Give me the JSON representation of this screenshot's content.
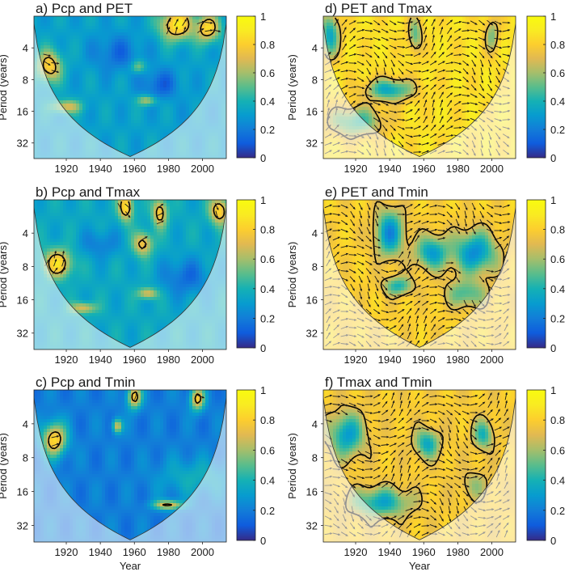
{
  "figure": {
    "cbar_ticks": [
      "0",
      "0.2",
      "0.4",
      "0.6",
      "0.8",
      "1"
    ]
  },
  "chart_data": [
    {
      "type": "heatmap",
      "title": "a) Pcp and PET",
      "xlabel": "",
      "ylabel": "Period (years)",
      "x_ticks": [
        "1920",
        "1940",
        "1960",
        "1980",
        "2000"
      ],
      "y_ticks": [
        "4",
        "8",
        "16",
        "32"
      ],
      "xlim": [
        1901,
        2014
      ],
      "ylim": [
        2,
        45
      ],
      "y_scale": "log2",
      "color_range": [
        0,
        1
      ],
      "colormap": "parula",
      "base_coherence": 0.32,
      "cone_of_influence": true,
      "blobs": [
        {
          "x": 1910,
          "p": 6.0,
          "value": 0.82,
          "sx": 5,
          "sp": 0.35
        },
        {
          "x": 1985,
          "p": 2.4,
          "value": 0.9,
          "sx": 7,
          "sp": 0.35
        },
        {
          "x": 2003,
          "p": 2.6,
          "value": 0.85,
          "sx": 5,
          "sp": 0.3
        },
        {
          "x": 1962,
          "p": 6.0,
          "value": 0.72,
          "sx": 3,
          "sp": 0.15
        },
        {
          "x": 1968,
          "p": 12.5,
          "value": 0.78,
          "sx": 4,
          "sp": 0.12
        },
        {
          "x": 1920,
          "p": 14.5,
          "value": 0.7,
          "sx": 6,
          "sp": 0.15
        },
        {
          "x": 1950,
          "p": 4.5,
          "value": 0.15,
          "sx": 10,
          "sp": 0.4
        },
        {
          "x": 1975,
          "p": 9.0,
          "value": 0.12,
          "sx": 8,
          "sp": 0.35
        },
        {
          "x": 1995,
          "p": 18.0,
          "value": 0.3,
          "sx": 12,
          "sp": 0.4
        }
      ]
    },
    {
      "type": "heatmap",
      "title": "b) Pcp and Tmax",
      "xlabel": "",
      "ylabel": "Period (years)",
      "x_ticks": [
        "1920",
        "1940",
        "1960",
        "1980",
        "2000"
      ],
      "y_ticks": [
        "4",
        "8",
        "16",
        "32"
      ],
      "xlim": [
        1901,
        2014
      ],
      "ylim": [
        2,
        45
      ],
      "y_scale": "log2",
      "color_range": [
        0,
        1
      ],
      "colormap": "parula",
      "base_coherence": 0.35,
      "cone_of_influence": true,
      "blobs": [
        {
          "x": 1915,
          "p": 7.5,
          "value": 0.85,
          "sx": 6,
          "sp": 0.3
        },
        {
          "x": 1955,
          "p": 2.3,
          "value": 0.88,
          "sx": 3,
          "sp": 0.3
        },
        {
          "x": 1965,
          "p": 5.0,
          "value": 0.78,
          "sx": 4,
          "sp": 0.25
        },
        {
          "x": 1975,
          "p": 2.6,
          "value": 0.82,
          "sx": 3,
          "sp": 0.3
        },
        {
          "x": 2010,
          "p": 2.5,
          "value": 0.84,
          "sx": 4,
          "sp": 0.3
        },
        {
          "x": 1968,
          "p": 14.0,
          "value": 0.75,
          "sx": 4,
          "sp": 0.12
        },
        {
          "x": 1930,
          "p": 19.0,
          "value": 0.72,
          "sx": 5,
          "sp": 0.12
        },
        {
          "x": 1990,
          "p": 10.0,
          "value": 0.15,
          "sx": 10,
          "sp": 0.4
        },
        {
          "x": 1940,
          "p": 5.0,
          "value": 0.2,
          "sx": 8,
          "sp": 0.3
        }
      ]
    },
    {
      "type": "heatmap",
      "title": "c) Pcp and Tmin",
      "xlabel": "Year",
      "ylabel": "Period (years)",
      "x_ticks": [
        "1920",
        "1940",
        "1960",
        "1980",
        "2000"
      ],
      "y_ticks": [
        "4",
        "8",
        "16",
        "32"
      ],
      "xlim": [
        1901,
        2014
      ],
      "ylim": [
        2,
        45
      ],
      "y_scale": "log2",
      "color_range": [
        0,
        1
      ],
      "colormap": "parula",
      "base_coherence": 0.2,
      "cone_of_influence": true,
      "blobs": [
        {
          "x": 1913,
          "p": 5.5,
          "value": 0.85,
          "sx": 5,
          "sp": 0.35
        },
        {
          "x": 1960,
          "p": 2.3,
          "value": 0.8,
          "sx": 3,
          "sp": 0.25
        },
        {
          "x": 1997,
          "p": 2.4,
          "value": 0.78,
          "sx": 3,
          "sp": 0.25
        },
        {
          "x": 1950,
          "p": 4.2,
          "value": 0.7,
          "sx": 2,
          "sp": 0.15
        },
        {
          "x": 1980,
          "p": 21.0,
          "value": 0.8,
          "sx": 6,
          "sp": 0.1
        },
        {
          "x": 1995,
          "p": 12.0,
          "value": 0.38,
          "sx": 15,
          "sp": 0.4
        }
      ]
    },
    {
      "type": "heatmap",
      "title": "d) PET and Tmax",
      "xlabel": "",
      "ylabel": "Period (years)",
      "x_ticks": [
        "1920",
        "1940",
        "1960",
        "1980",
        "2000"
      ],
      "y_ticks": [
        "4",
        "8",
        "16",
        "32"
      ],
      "xlim": [
        1901,
        2014
      ],
      "ylim": [
        2,
        45
      ],
      "y_scale": "log2",
      "color_range": [
        0,
        1
      ],
      "colormap": "parula",
      "base_coherence": 0.86,
      "cone_of_influence": true,
      "blobs": [
        {
          "x": 1940,
          "p": 10.0,
          "value": 0.35,
          "sx": 10,
          "sp": 0.25
        },
        {
          "x": 1955,
          "p": 3.0,
          "value": 0.5,
          "sx": 3,
          "sp": 0.4
        },
        {
          "x": 1905,
          "p": 3.0,
          "value": 0.35,
          "sx": 4,
          "sp": 0.5
        },
        {
          "x": 2000,
          "p": 3.0,
          "value": 0.55,
          "sx": 3,
          "sp": 0.4
        },
        {
          "x": 1920,
          "p": 20.0,
          "value": 0.45,
          "sx": 12,
          "sp": 0.35
        }
      ]
    },
    {
      "type": "heatmap",
      "title": "e) PET and Tmin",
      "xlabel": "",
      "ylabel": "Period (years)",
      "x_ticks": [
        "1920",
        "1940",
        "1960",
        "1980",
        "2000"
      ],
      "y_ticks": [
        "4",
        "8",
        "16",
        "32"
      ],
      "xlim": [
        1901,
        2014
      ],
      "ylim": [
        2,
        45
      ],
      "y_scale": "log2",
      "color_range": [
        0,
        1
      ],
      "colormap": "parula",
      "base_coherence": 0.8,
      "cone_of_influence": true,
      "blobs": [
        {
          "x": 1940,
          "p": 4.0,
          "value": 0.25,
          "sx": 6,
          "sp": 0.5
        },
        {
          "x": 1965,
          "p": 6.0,
          "value": 0.3,
          "sx": 7,
          "sp": 0.35
        },
        {
          "x": 1990,
          "p": 6.0,
          "value": 0.25,
          "sx": 9,
          "sp": 0.45
        },
        {
          "x": 1945,
          "p": 12.0,
          "value": 0.4,
          "sx": 6,
          "sp": 0.2
        },
        {
          "x": 1985,
          "p": 14.0,
          "value": 0.45,
          "sx": 8,
          "sp": 0.3
        }
      ]
    },
    {
      "type": "heatmap",
      "title": "f) Tmax and Tmin",
      "xlabel": "Year",
      "ylabel": "Period (years)",
      "x_ticks": [
        "1920",
        "1940",
        "1960",
        "1980",
        "2000"
      ],
      "y_ticks": [
        "4",
        "8",
        "16",
        "32"
      ],
      "xlim": [
        1901,
        2014
      ],
      "ylim": [
        2,
        45
      ],
      "y_scale": "log2",
      "color_range": [
        0,
        1
      ],
      "colormap": "parula",
      "base_coherence": 0.78,
      "cone_of_influence": true,
      "blobs": [
        {
          "x": 1915,
          "p": 5.0,
          "value": 0.3,
          "sx": 7,
          "sp": 0.45
        },
        {
          "x": 1962,
          "p": 6.0,
          "value": 0.35,
          "sx": 5,
          "sp": 0.3
        },
        {
          "x": 1995,
          "p": 5.0,
          "value": 0.4,
          "sx": 4,
          "sp": 0.3
        },
        {
          "x": 1935,
          "p": 20.0,
          "value": 0.35,
          "sx": 12,
          "sp": 0.3
        },
        {
          "x": 1990,
          "p": 14.0,
          "value": 0.6,
          "sx": 6,
          "sp": 0.3
        }
      ]
    }
  ]
}
